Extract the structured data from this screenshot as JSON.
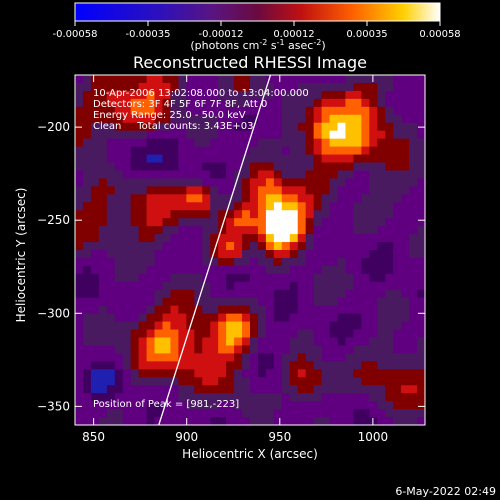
{
  "chart_data": {
    "type": "heatmap",
    "title": "Reconstructed RHESSI Image",
    "xlabel": "Heliocentric X (arcsec)",
    "ylabel": "Heliocentric Y (arcsec)",
    "x_ticks": [
      850,
      900,
      950,
      1000
    ],
    "y_ticks": [
      -200,
      -250,
      -300,
      -350
    ],
    "xlim": [
      840,
      1028
    ],
    "ylim": [
      -360,
      -172
    ],
    "colorbar": {
      "ticks": [
        "-0.00058",
        "-0.00035",
        "-0.00012",
        "0.00012",
        "0.00035",
        "0.00058"
      ],
      "range": [
        -0.00058,
        0.00058
      ],
      "unit_text": "(photons cm",
      "unit_sup1": "-2",
      "unit_mid": " s",
      "unit_sup2": "-1",
      "unit_mid2": " asec",
      "unit_sup3": "-2",
      "unit_end": ")"
    },
    "annotations": [
      "10-Apr-2006 13:02:08.000 to 13:04:00.000",
      "Detectors: 3F 4F 5F 6F 7F 8F, Att 0",
      "Energy Range: 25.0 - 50.0 keV",
      "Clean     Total counts: 3.43E+03"
    ],
    "peak_label": "Position of Peak = [981,-223]",
    "limb": {
      "x_at_bottom": 885,
      "x_at_top": 945
    },
    "grid": false
  },
  "footer": {
    "date": "6-May-2022 02:49"
  },
  "colors": {
    "background": "#000000",
    "limb_line": "#ffffff",
    "colormap": [
      "#0000ff",
      "#2020b0",
      "#400060",
      "#600080",
      "#4a1a60",
      "#800000",
      "#d01010",
      "#ff6000",
      "#ffc000",
      "#ffffff"
    ]
  }
}
